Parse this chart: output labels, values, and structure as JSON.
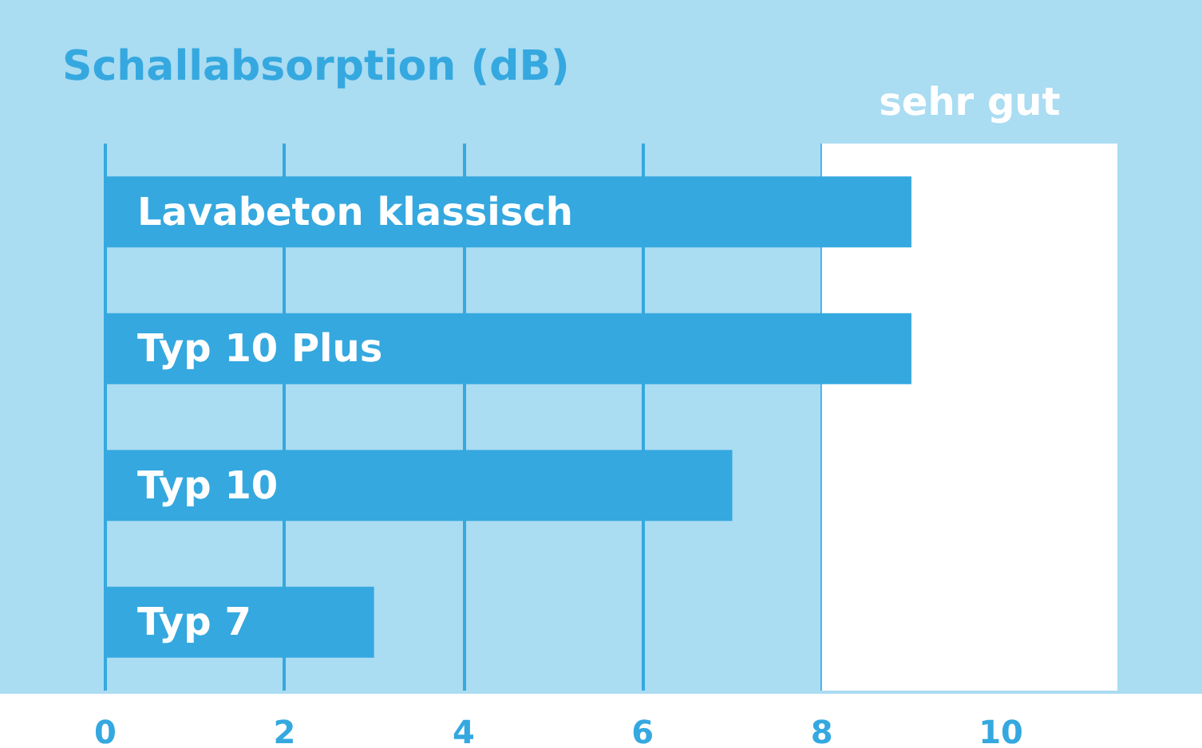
{
  "chart_data": {
    "type": "bar",
    "orientation": "horizontal",
    "title": "Schallabsorption (dB)",
    "categories": [
      "Lavabeton klassisch",
      "Typ 10 Plus",
      "Typ 10",
      "Typ 7"
    ],
    "values": [
      9,
      9,
      7,
      3
    ],
    "color": "#35a8df",
    "xlim": [
      0,
      11.3
    ],
    "xticks": [
      0,
      2,
      4,
      6,
      8,
      10
    ],
    "grid": "x",
    "tick_labels": "x",
    "bands": [
      {
        "axis": "x",
        "from": 8,
        "to": 11.3,
        "label": "sehr gut",
        "color": "#ffffff"
      }
    ]
  }
}
